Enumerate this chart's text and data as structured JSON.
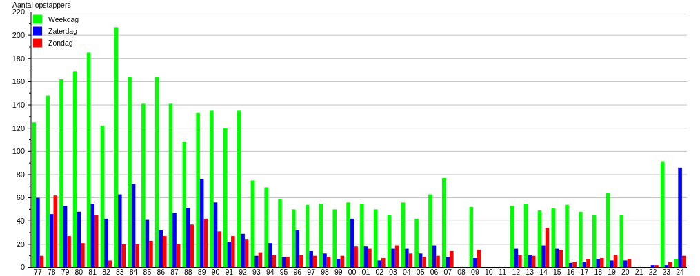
{
  "chart_data": {
    "type": "bar",
    "ylabel": "Aantal opstappers",
    "categories": [
      "77",
      "78",
      "79",
      "80",
      "81",
      "82",
      "83",
      "84",
      "85",
      "86",
      "87",
      "88",
      "89",
      "90",
      "91",
      "92",
      "93",
      "94",
      "95",
      "96",
      "97",
      "98",
      "99",
      "00",
      "01",
      "02",
      "03",
      "04",
      "05",
      "06",
      "07",
      "08",
      "09",
      "10",
      "11",
      "12",
      "13",
      "14",
      "15",
      "16",
      "17",
      "18",
      "19",
      "20",
      "21",
      "22",
      "23",
      "24"
    ],
    "series": [
      {
        "name": "Weekdag",
        "color": "#00ff00",
        "values": [
          125,
          148,
          162,
          169,
          185,
          122,
          207,
          164,
          141,
          164,
          141,
          108,
          133,
          135,
          120,
          135,
          75,
          69,
          59,
          50,
          54,
          55,
          50,
          56,
          55,
          50,
          45,
          56,
          42,
          63,
          77,
          null,
          52,
          null,
          null,
          53,
          55,
          49,
          51,
          54,
          48,
          45,
          64,
          45,
          null,
          null,
          91,
          7
        ]
      },
      {
        "name": "Zaterdag",
        "color": "#0000ff",
        "values": [
          60,
          46,
          53,
          48,
          55,
          42,
          63,
          72,
          41,
          32,
          47,
          51,
          76,
          56,
          22,
          29,
          10,
          21,
          9,
          32,
          14,
          12,
          7,
          42,
          18,
          6,
          16,
          16,
          12,
          19,
          9,
          null,
          8,
          null,
          null,
          16,
          11,
          19,
          16,
          4,
          5,
          7,
          6,
          6,
          null,
          2,
          2,
          86
        ]
      },
      {
        "name": "Zondag",
        "color": "#ff0000",
        "values": [
          10,
          62,
          27,
          21,
          45,
          6,
          20,
          20,
          23,
          27,
          20,
          37,
          42,
          31,
          27,
          24,
          13,
          11,
          9,
          11,
          10,
          9,
          10,
          18,
          16,
          8,
          19,
          12,
          9,
          10,
          14,
          null,
          15,
          null,
          null,
          11,
          10,
          34,
          15,
          5,
          7,
          8,
          11,
          7,
          null,
          2,
          5,
          10
        ]
      }
    ],
    "ylim": [
      0,
      220
    ],
    "yticks": [
      0,
      {
        "value": 10,
        "label": null
      },
      20,
      {
        "value": 30,
        "label": null
      },
      40,
      {
        "value": 50,
        "label": null
      },
      60,
      {
        "value": 70,
        "label": null
      },
      80,
      {
        "value": 90,
        "label": null
      },
      100,
      {
        "value": 110,
        "label": null
      },
      120,
      {
        "value": 130,
        "label": null
      },
      140,
      {
        "value": 150,
        "label": null
      },
      160,
      {
        "value": 170,
        "label": null
      },
      180,
      {
        "value": 190,
        "label": null
      },
      200,
      {
        "value": 210,
        "label": null
      },
      220
    ],
    "grid": "y",
    "legend": "top left"
  }
}
